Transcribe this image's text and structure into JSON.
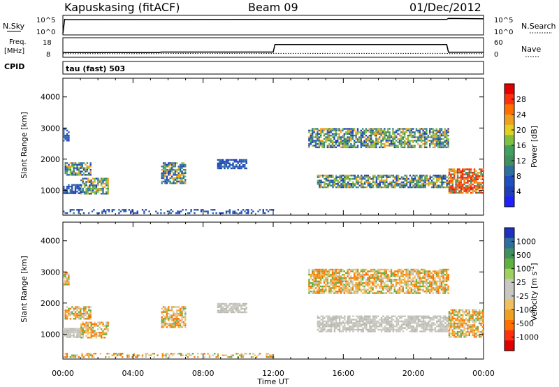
{
  "header": {
    "station": "Kapuskasing (fitACF)",
    "beam": "Beam 09",
    "date": "01/Dec/2012"
  },
  "strips": {
    "nsky": {
      "left_label": "N.Sky",
      "right_label": "N.Search",
      "left_ticks": [
        "10^5",
        "10^0"
      ],
      "right_ticks": [
        "10^5",
        "10^0"
      ]
    },
    "freq": {
      "left_label_1": "Freq.",
      "left_label_2": "[MHz]",
      "right_label": "Nave",
      "left_ticks": [
        "18",
        "8"
      ],
      "right_ticks": [
        "60",
        "0"
      ]
    },
    "cpid": {
      "label": "CPID",
      "text": "tau (fast) 503"
    }
  },
  "colors": {
    "frame": "#000000",
    "blue": "#1f3fb8",
    "green": "#3f8f5f",
    "orange": "#f0a020",
    "red": "#e02010",
    "grey": "#c8c8c0"
  },
  "chart_data": [
    {
      "type": "line",
      "name": "nsky-strip",
      "y_label": "N.Sky",
      "x": [
        0,
        0.1,
        0.2,
        12,
        12.1,
        21.9,
        22.0,
        24
      ],
      "values_log": [
        0,
        4.6,
        4.5,
        4.6,
        4.6,
        4.6,
        4.9,
        4.8
      ]
    },
    {
      "type": "line",
      "name": "freq-strip",
      "y_label": "Freq. [MHz]",
      "x": [
        0,
        5.5,
        5.6,
        12,
        12.1,
        21.9,
        22.0,
        24
      ],
      "freq_mhz": [
        10,
        10,
        10.3,
        10.3,
        14.8,
        14.8,
        10.2,
        10.2
      ],
      "nave": [
        8,
        8,
        9,
        9,
        9,
        9,
        8,
        8
      ]
    },
    {
      "type": "heatmap",
      "name": "power-panel",
      "xlabel": "",
      "ylabel": "Slant Range [km]",
      "xlim": [
        0,
        24
      ],
      "ylim": [
        200,
        4600
      ],
      "x_ticks": [
        "00:00",
        "04:00",
        "08:00",
        "12:00",
        "16:00",
        "20:00",
        "00:00"
      ],
      "y_ticks": [
        1000,
        2000,
        3000,
        4000
      ],
      "colorbar": {
        "label": "Power [dB]",
        "ticks": [
          "28",
          "24",
          "20",
          "16",
          "12",
          "8",
          "4"
        ],
        "colors": [
          "#e00000",
          "#ff3010",
          "#ff7000",
          "#f0a020",
          "#e0d020",
          "#80c040",
          "#40a060",
          "#3f8f5f",
          "#2f6fa0",
          "#2050c0",
          "#1f3fb8",
          "#2020ff"
        ]
      },
      "patches": [
        {
          "t": [
            0.0,
            0.3
          ],
          "r": [
            2600,
            3000
          ],
          "level": "blue"
        },
        {
          "t": [
            0.1,
            1.6
          ],
          "r": [
            1500,
            1900
          ],
          "level": "mixed"
        },
        {
          "t": [
            0.0,
            1.0
          ],
          "r": [
            900,
            1200
          ],
          "level": "blue"
        },
        {
          "t": [
            1.0,
            2.6
          ],
          "r": [
            900,
            1400
          ],
          "level": "mixed"
        },
        {
          "t": [
            5.6,
            7.0
          ],
          "r": [
            1200,
            1900
          ],
          "level": "mixed"
        },
        {
          "t": [
            8.8,
            10.5
          ],
          "r": [
            1700,
            2000
          ],
          "level": "blue"
        },
        {
          "t": [
            14.0,
            22.0
          ],
          "r": [
            2400,
            3000
          ],
          "level": "mixed"
        },
        {
          "t": [
            14.5,
            22.0
          ],
          "r": [
            1100,
            1500
          ],
          "level": "mixed"
        },
        {
          "t": [
            22.0,
            24.0
          ],
          "r": [
            900,
            1700
          ],
          "level": "red"
        },
        {
          "t": [
            0.0,
            12.0
          ],
          "r": [
            250,
            400
          ],
          "level": "blue"
        }
      ]
    },
    {
      "type": "heatmap",
      "name": "velocity-panel",
      "xlabel": "Time UT",
      "ylabel": "Slant Range [km]",
      "xlim": [
        0,
        24
      ],
      "ylim": [
        200,
        4600
      ],
      "x_ticks": [
        "00:00",
        "04:00",
        "08:00",
        "12:00",
        "16:00",
        "20:00",
        "00:00"
      ],
      "y_ticks": [
        1000,
        2000,
        3000,
        4000
      ],
      "colorbar": {
        "label": "Velocity [m s",
        "label_sup": "-1",
        "label_end": "]",
        "ticks": [
          "1000",
          "500",
          "100",
          "25",
          "-25",
          "-100",
          "-500",
          "-1000"
        ],
        "colors": [
          "#2030c0",
          "#2f6fa0",
          "#3f8f5f",
          "#60b040",
          "#a0d060",
          "#c8c8c0",
          "#c8c8c0",
          "#f0c060",
          "#f0a020",
          "#ff7000",
          "#ff3010",
          "#e00000"
        ]
      },
      "patches": [
        {
          "t": [
            0.0,
            0.3
          ],
          "r": [
            2600,
            3000
          ],
          "level": "orange"
        },
        {
          "t": [
            0.1,
            1.6
          ],
          "r": [
            1500,
            1900
          ],
          "level": "orange"
        },
        {
          "t": [
            0.0,
            1.0
          ],
          "r": [
            900,
            1200
          ],
          "level": "grey"
        },
        {
          "t": [
            1.0,
            2.6
          ],
          "r": [
            900,
            1400
          ],
          "level": "orange"
        },
        {
          "t": [
            5.6,
            7.0
          ],
          "r": [
            1200,
            1900
          ],
          "level": "orange"
        },
        {
          "t": [
            8.8,
            10.5
          ],
          "r": [
            1700,
            2000
          ],
          "level": "grey"
        },
        {
          "t": [
            14.0,
            22.0
          ],
          "r": [
            2300,
            3100
          ],
          "level": "orange"
        },
        {
          "t": [
            14.5,
            22.0
          ],
          "r": [
            1100,
            1600
          ],
          "level": "grey"
        },
        {
          "t": [
            22.0,
            24.0
          ],
          "r": [
            900,
            1800
          ],
          "level": "orange"
        },
        {
          "t": [
            0.0,
            12.0
          ],
          "r": [
            250,
            400
          ],
          "level": "orange"
        }
      ]
    }
  ]
}
